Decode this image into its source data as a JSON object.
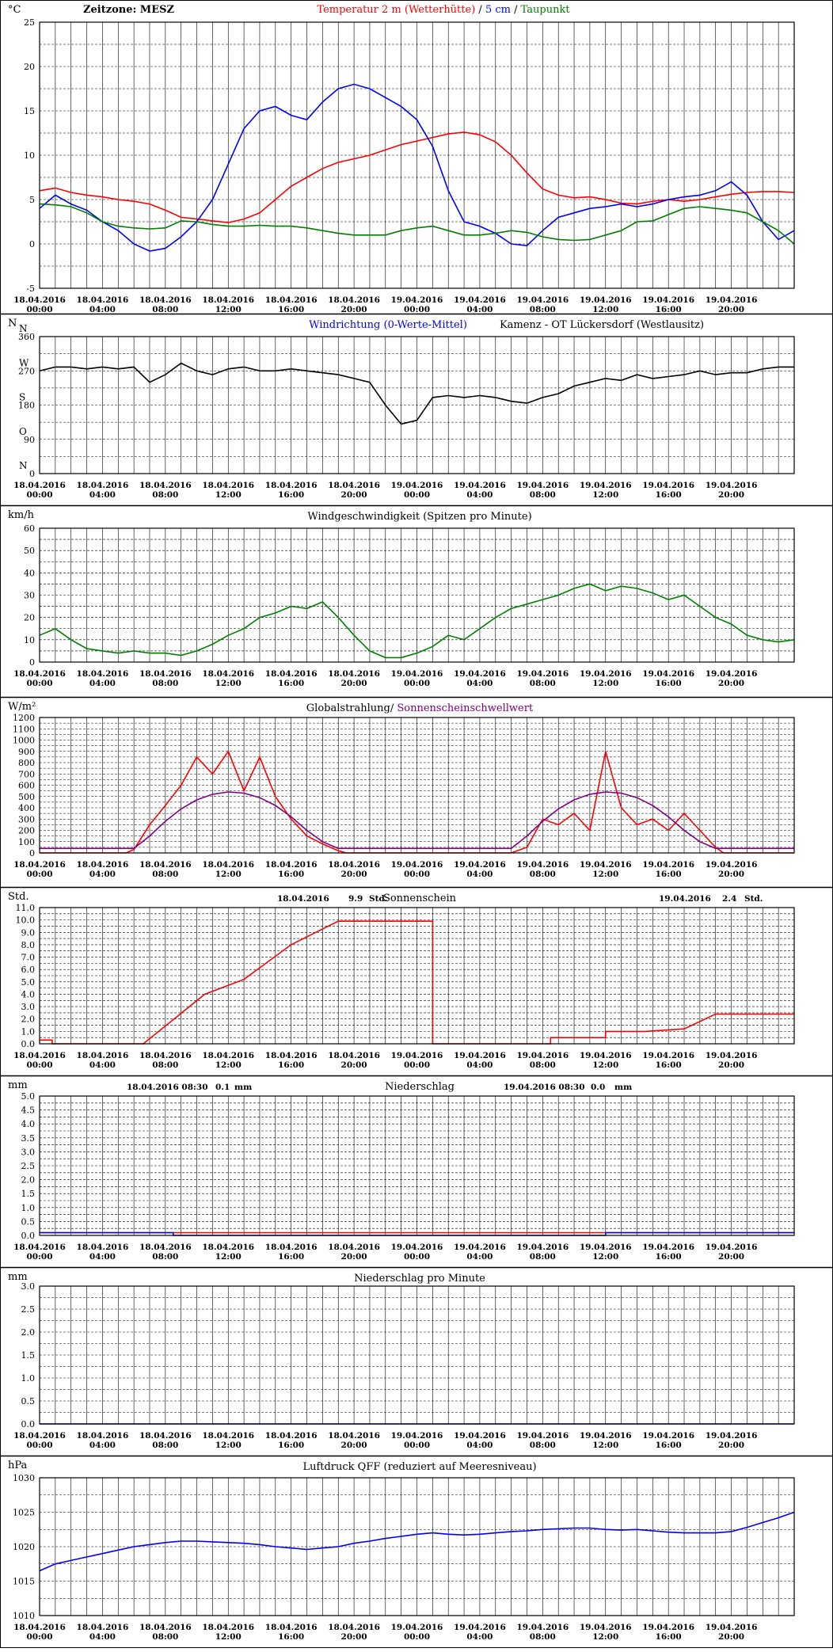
{
  "timezone_label": "Zeitzone: MESZ",
  "time_ticks": [
    {
      "date": "18.04.2016",
      "time": "00:00"
    },
    {
      "date": "18.04.2016",
      "time": "04:00"
    },
    {
      "date": "18.04.2016",
      "time": "08:00"
    },
    {
      "date": "18.04.2016",
      "time": "12:00"
    },
    {
      "date": "18.04.2016",
      "time": "16:00"
    },
    {
      "date": "18.04.2016",
      "time": "20:00"
    },
    {
      "date": "19.04.2016",
      "time": "00:00"
    },
    {
      "date": "19.04.2016",
      "time": "04:00"
    },
    {
      "date": "19.04.2016",
      "time": "08:00"
    },
    {
      "date": "19.04.2016",
      "time": "12:00"
    },
    {
      "date": "19.04.2016",
      "time": "16:00"
    },
    {
      "date": "19.04.2016",
      "time": "20:00"
    }
  ],
  "chart_data": [
    {
      "type": "line",
      "unit": "°C",
      "title_parts": [
        {
          "text": "Temperatur 2 m (Wetterhütte)",
          "color": "#ff0000"
        },
        {
          "text": " / ",
          "color": "#000000"
        },
        {
          "text": "5 cm",
          "color": "#0000ff"
        },
        {
          "text": " / ",
          "color": "#000000"
        },
        {
          "text": "Taupunkt",
          "color": "#008000"
        }
      ],
      "ylim": [
        -5,
        25
      ],
      "yticks": [
        -5,
        0,
        5,
        10,
        15,
        20,
        25
      ],
      "series": [
        {
          "color": "#ff0000",
          "x": [
            0,
            1,
            2,
            3,
            4,
            5,
            6,
            7,
            8,
            9,
            10,
            11,
            12,
            13,
            14,
            15,
            16,
            17,
            18,
            19,
            20,
            21,
            22,
            23,
            24,
            25,
            26,
            27,
            28,
            29,
            30,
            31,
            32,
            33,
            34,
            35,
            36,
            37,
            38,
            39,
            40,
            41,
            42,
            43,
            44,
            45,
            46,
            47,
            48
          ],
          "values": [
            6.0,
            6.3,
            5.8,
            5.5,
            5.3,
            5.0,
            4.8,
            4.5,
            3.8,
            3.0,
            2.8,
            2.6,
            2.4,
            2.8,
            3.5,
            5.0,
            6.5,
            7.5,
            8.5,
            9.2,
            9.6,
            10.0,
            10.6,
            11.2,
            11.6,
            12.0,
            12.4,
            12.6,
            12.3,
            11.5,
            10.0,
            8.0,
            6.2,
            5.5,
            5.2,
            5.3,
            5.0,
            4.6,
            4.5,
            4.8,
            5.0,
            4.8,
            5.0,
            5.3,
            5.6,
            5.8,
            5.9,
            5.9,
            5.8
          ]
        },
        {
          "color": "#0000ff",
          "x": [
            0,
            1,
            2,
            3,
            4,
            5,
            6,
            7,
            8,
            9,
            10,
            11,
            12,
            13,
            14,
            15,
            16,
            17,
            18,
            19,
            20,
            21,
            22,
            23,
            24,
            25,
            26,
            27,
            28,
            29,
            30,
            31,
            32,
            33,
            34,
            35,
            36,
            37,
            38,
            39,
            40,
            41,
            42,
            43,
            44,
            45,
            46,
            47,
            48
          ],
          "values": [
            4.0,
            5.5,
            4.5,
            3.8,
            2.5,
            1.5,
            0.0,
            -0.8,
            -0.5,
            0.8,
            2.5,
            5.0,
            9.0,
            13.0,
            15.0,
            15.5,
            14.5,
            14.0,
            16.0,
            17.5,
            18.0,
            17.5,
            16.5,
            15.5,
            14.0,
            11.0,
            6.0,
            2.5,
            2.0,
            1.2,
            0.0,
            -0.2,
            1.5,
            3.0,
            3.5,
            4.0,
            4.2,
            4.5,
            4.2,
            4.5,
            5.0,
            5.3,
            5.5,
            6.0,
            7.0,
            5.5,
            2.5,
            0.5,
            1.5
          ]
        },
        {
          "color": "#008000",
          "x": [
            0,
            1,
            2,
            3,
            4,
            5,
            6,
            7,
            8,
            9,
            10,
            11,
            12,
            13,
            14,
            15,
            16,
            17,
            18,
            19,
            20,
            21,
            22,
            23,
            24,
            25,
            26,
            27,
            28,
            29,
            30,
            31,
            32,
            33,
            34,
            35,
            36,
            37,
            38,
            39,
            40,
            41,
            42,
            43,
            44,
            45,
            46,
            47,
            48
          ],
          "values": [
            4.5,
            4.4,
            4.2,
            3.5,
            2.5,
            2.0,
            1.8,
            1.7,
            1.8,
            2.6,
            2.5,
            2.2,
            2.0,
            2.0,
            2.1,
            2.0,
            2.0,
            1.8,
            1.5,
            1.2,
            1.0,
            1.0,
            1.0,
            1.5,
            1.8,
            2.0,
            1.5,
            1.0,
            1.0,
            1.2,
            1.5,
            1.3,
            0.8,
            0.5,
            0.4,
            0.5,
            1.0,
            1.5,
            2.5,
            2.6,
            3.3,
            4.0,
            4.2,
            4.0,
            3.8,
            3.5,
            2.5,
            1.5,
            0.0
          ]
        }
      ]
    },
    {
      "type": "line",
      "unit": "N",
      "title_left": "Windrichtung (0-Werte-Mittel)",
      "title_left_color": "#0000ff",
      "title_right": "Kamenz - OT Lückersdorf (Westlausitz)",
      "ylim": [
        0,
        360
      ],
      "yticks": [
        0,
        90,
        180,
        270,
        360
      ],
      "ylabels": [
        {
          "value": 360,
          "dir": "N"
        },
        {
          "value": 270,
          "dir": "W"
        },
        {
          "value": 180,
          "dir": "S"
        },
        {
          "value": 90,
          "dir": "O"
        },
        {
          "value": 0,
          "dir": "N"
        }
      ],
      "series": [
        {
          "color": "#000000",
          "x": [
            0,
            1,
            2,
            3,
            4,
            5,
            6,
            7,
            8,
            9,
            10,
            11,
            12,
            13,
            14,
            15,
            16,
            17,
            18,
            19,
            20,
            21,
            22,
            23,
            24,
            25,
            26,
            27,
            28,
            29,
            30,
            31,
            32,
            33,
            34,
            35,
            36,
            37,
            38,
            39,
            40,
            41,
            42,
            43,
            44,
            45,
            46,
            47,
            48
          ],
          "values": [
            270,
            280,
            280,
            275,
            280,
            275,
            280,
            240,
            260,
            290,
            270,
            260,
            275,
            280,
            270,
            270,
            275,
            270,
            265,
            260,
            250,
            240,
            180,
            130,
            140,
            200,
            205,
            200,
            205,
            200,
            190,
            185,
            200,
            210,
            230,
            240,
            250,
            245,
            260,
            250,
            255,
            260,
            270,
            260,
            265,
            265,
            275,
            280,
            280
          ]
        }
      ]
    },
    {
      "type": "line",
      "unit": "km/h",
      "title": "Windgeschwindigkeit (Spitzen pro Minute)",
      "ylim": [
        0,
        60
      ],
      "yticks": [
        0,
        10,
        20,
        30,
        40,
        50,
        60
      ],
      "series": [
        {
          "color": "#008000",
          "x": [
            0,
            1,
            2,
            3,
            4,
            5,
            6,
            7,
            8,
            9,
            10,
            11,
            12,
            13,
            14,
            15,
            16,
            17,
            18,
            19,
            20,
            21,
            22,
            23,
            24,
            25,
            26,
            27,
            28,
            29,
            30,
            31,
            32,
            33,
            34,
            35,
            36,
            37,
            38,
            39,
            40,
            41,
            42,
            43,
            44,
            45,
            46,
            47,
            48
          ],
          "values": [
            12,
            15,
            10,
            6,
            5,
            4,
            5,
            4,
            4,
            3,
            5,
            8,
            12,
            15,
            20,
            22,
            25,
            24,
            27,
            20,
            12,
            5,
            2,
            2,
            4,
            7,
            12,
            10,
            15,
            20,
            24,
            26,
            28,
            30,
            33,
            35,
            32,
            34,
            33,
            31,
            28,
            30,
            25,
            20,
            17,
            12,
            10,
            9,
            10
          ]
        }
      ]
    },
    {
      "type": "line",
      "unit": "W/m²",
      "title_left": "Globalstrahlung/",
      "title_right": "Sonnenscheinschwellwert",
      "title_right_color": "#800080",
      "ylim": [
        0,
        1200
      ],
      "yticks": [
        0,
        100,
        200,
        300,
        400,
        500,
        600,
        700,
        800,
        900,
        1000,
        1100,
        1200
      ],
      "series": [
        {
          "color": "#ff0000",
          "x": [
            0,
            5.5,
            6,
            7,
            8,
            9,
            10,
            11,
            12,
            13,
            14,
            15,
            16,
            17,
            18,
            19,
            19.5,
            30,
            31,
            32,
            33,
            34,
            35,
            36,
            37,
            38,
            39,
            40,
            41,
            42,
            43,
            43.5,
            48
          ],
          "values": [
            0,
            0,
            30,
            250,
            420,
            600,
            850,
            700,
            900,
            550,
            850,
            500,
            300,
            150,
            80,
            20,
            0,
            0,
            50,
            300,
            250,
            350,
            200,
            900,
            400,
            250,
            300,
            200,
            350,
            200,
            50,
            0,
            0
          ]
        },
        {
          "color": "#800080",
          "x": [
            0,
            5.5,
            6,
            7,
            8,
            9,
            10,
            11,
            12,
            13,
            14,
            15,
            16,
            17,
            18,
            19,
            19.5,
            29.5,
            30,
            31,
            32,
            33,
            34,
            35,
            36,
            37,
            38,
            39,
            40,
            41,
            42,
            43,
            43.5,
            48
          ],
          "values": [
            40,
            40,
            40,
            150,
            280,
            390,
            470,
            520,
            540,
            530,
            490,
            420,
            320,
            200,
            100,
            40,
            40,
            40,
            40,
            150,
            280,
            390,
            470,
            520,
            540,
            530,
            490,
            420,
            320,
            200,
            100,
            40,
            40,
            40
          ]
        }
      ]
    },
    {
      "type": "line",
      "unit": "Std.",
      "title": "Sonnenschein",
      "summaries": [
        {
          "date": "18.04.2016",
          "value": "9.9",
          "unit": "Std."
        },
        {
          "date": "19.04.2016",
          "value": "2.4",
          "unit": "Std."
        }
      ],
      "ylim": [
        0.0,
        11.0
      ],
      "yticks": [
        0.0,
        1.0,
        2.0,
        3.0,
        4.0,
        5.0,
        6.0,
        7.0,
        8.0,
        9.0,
        10.0,
        11.0
      ],
      "series": [
        {
          "color": "#ff0000",
          "x": [
            0,
            0.8,
            0.8,
            6.6,
            10.5,
            13,
            16,
            19,
            19.5,
            25,
            25,
            32.5,
            32.5,
            36,
            36,
            38.5,
            38.5,
            41,
            43,
            43,
            48
          ],
          "values": [
            0.3,
            0.3,
            0,
            0,
            4.0,
            5.2,
            8.0,
            9.9,
            9.9,
            9.9,
            0,
            0,
            0.5,
            0.5,
            1.0,
            1.0,
            1.0,
            1.2,
            2.4,
            2.4,
            2.4
          ]
        }
      ]
    },
    {
      "type": "line",
      "unit": "mm",
      "title": "Niederschlag",
      "summaries": [
        {
          "date": "18.04.2016 08:30",
          "value": "0.1",
          "unit": "mm"
        },
        {
          "date": "19.04.2016 08:30",
          "value": "0.0",
          "unit": "mm"
        }
      ],
      "ylim": [
        0.0,
        5.0
      ],
      "yticks": [
        0.0,
        0.5,
        1.0,
        1.5,
        2.0,
        2.5,
        3.0,
        3.5,
        4.0,
        4.5,
        5.0
      ],
      "series": [
        {
          "color": "#ff0000",
          "x": [
            0,
            48
          ],
          "values": [
            0.1,
            0.1
          ]
        },
        {
          "color": "#0000ff",
          "x": [
            0,
            8.5,
            8.5,
            36,
            36,
            48
          ],
          "values": [
            0.1,
            0.1,
            0.0,
            0.0,
            0.1,
            0.1
          ]
        }
      ]
    },
    {
      "type": "line",
      "unit": "mm",
      "title": "Niederschlag pro Minute",
      "ylim": [
        0.0,
        3.0
      ],
      "yticks": [
        0.0,
        0.5,
        1.0,
        1.5,
        2.0,
        2.5,
        3.0
      ],
      "series": [
        {
          "color": "#0000ff",
          "x": [
            0,
            48
          ],
          "values": [
            0,
            0
          ]
        }
      ]
    },
    {
      "type": "line",
      "unit": "hPa",
      "title": "Luftdruck QFF (reduziert auf Meeresniveau)",
      "ylim": [
        1010,
        1030
      ],
      "yticks": [
        1010,
        1015,
        1020,
        1025,
        1030
      ],
      "series": [
        {
          "color": "#0000ff",
          "x": [
            0,
            1,
            2,
            3,
            4,
            5,
            6,
            7,
            8,
            9,
            10,
            11,
            12,
            13,
            14,
            15,
            16,
            17,
            18,
            19,
            20,
            21,
            22,
            23,
            24,
            25,
            26,
            27,
            28,
            29,
            30,
            31,
            32,
            33,
            34,
            35,
            36,
            37,
            38,
            39,
            40,
            41,
            42,
            43,
            44,
            45,
            46,
            47,
            48
          ],
          "values": [
            1016.5,
            1017.5,
            1018.0,
            1018.5,
            1019.0,
            1019.5,
            1020.0,
            1020.3,
            1020.6,
            1020.8,
            1020.8,
            1020.7,
            1020.6,
            1020.5,
            1020.3,
            1020.0,
            1019.8,
            1019.6,
            1019.8,
            1020.0,
            1020.5,
            1020.8,
            1021.2,
            1021.5,
            1021.8,
            1022.0,
            1021.8,
            1021.7,
            1021.8,
            1022.0,
            1022.2,
            1022.3,
            1022.5,
            1022.6,
            1022.7,
            1022.7,
            1022.5,
            1022.4,
            1022.5,
            1022.3,
            1022.1,
            1022.0,
            1022.0,
            1022.0,
            1022.2,
            1022.8,
            1023.5,
            1024.2,
            1025.0
          ]
        }
      ]
    }
  ]
}
